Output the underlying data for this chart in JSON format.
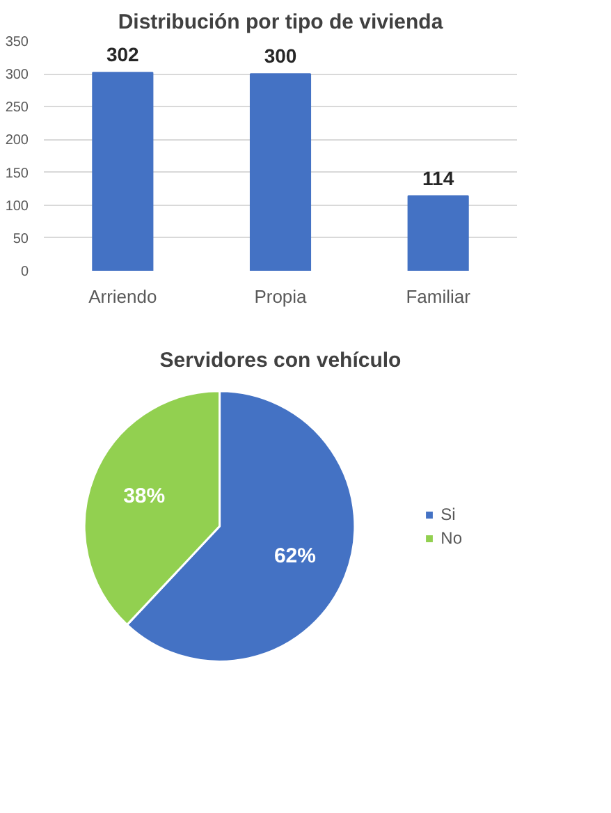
{
  "chart_data": [
    {
      "type": "bar",
      "title": "Distribución por tipo de vivienda",
      "categories": [
        "Arriendo",
        "Propia",
        "Familiar"
      ],
      "values": [
        302,
        300,
        114
      ],
      "color": "#4472c4",
      "ylim": [
        0,
        350
      ],
      "yticks": [
        0,
        50,
        100,
        150,
        200,
        250,
        300,
        350
      ],
      "grid": "y",
      "data_labels": true
    },
    {
      "type": "pie",
      "title": "Servidores con vehículo",
      "categories": [
        "Si",
        "No"
      ],
      "values": [
        62,
        38
      ],
      "colors": [
        "#4472c4",
        "#92d050"
      ],
      "value_labels": [
        "62%",
        "38%"
      ],
      "legend": "right"
    }
  ]
}
